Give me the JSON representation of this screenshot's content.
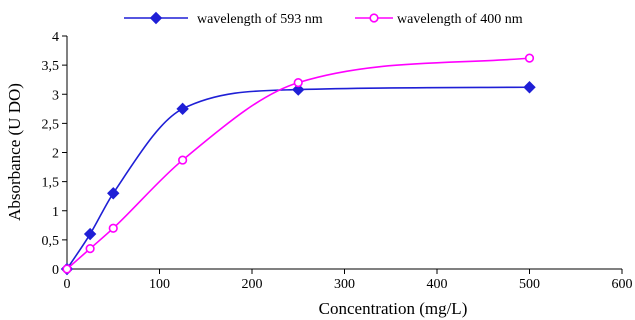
{
  "chart_data": {
    "type": "line",
    "title": "",
    "xlabel": "Concentration (mg/L)",
    "ylabel": "Absorbance (U DO)",
    "xlim": [
      0,
      600
    ],
    "ylim": [
      0,
      4
    ],
    "x_ticks": [
      0,
      100,
      200,
      300,
      400,
      500,
      600
    ],
    "y_ticks": [
      0,
      0.5,
      1,
      1.5,
      2,
      2.5,
      3,
      3.5,
      4
    ],
    "x_tick_labels": [
      "0",
      "100",
      "200",
      "300",
      "400",
      "500",
      "600"
    ],
    "y_tick_labels": [
      "0",
      "0,5",
      "1",
      "1,5",
      "2",
      "2,5",
      "3",
      "3,5",
      "4"
    ],
    "grid": false,
    "legend_position": "top",
    "series": [
      {
        "name": "wavelength of 593 nm",
        "color": "#1f1fd6",
        "marker": "diamond",
        "x": [
          0,
          25,
          50,
          125,
          250,
          500
        ],
        "y": [
          0,
          0.6,
          1.3,
          2.75,
          3.08,
          3.12
        ]
      },
      {
        "name": "wavelength of  400 nm",
        "color": "#ff00ff",
        "marker": "circle-open",
        "x": [
          0,
          25,
          50,
          125,
          250,
          500
        ],
        "y": [
          0,
          0.35,
          0.7,
          1.87,
          3.2,
          3.62
        ]
      }
    ]
  }
}
